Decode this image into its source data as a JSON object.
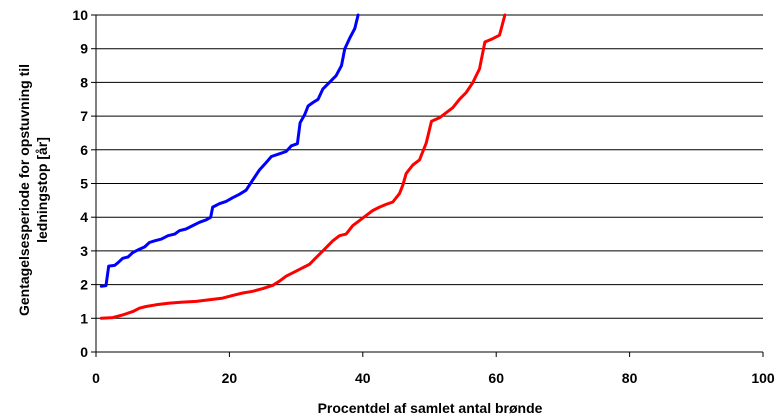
{
  "chart_data": {
    "type": "line",
    "xlabel": "Procentdel af samlet antal brønde",
    "ylabel_lines": [
      "Gentagelsesperiode for opstuvning til",
      "ledningstop [år]"
    ],
    "xlim": [
      0,
      100
    ],
    "ylim": [
      0,
      10
    ],
    "x_ticks": [
      0,
      20,
      40,
      60,
      80,
      100
    ],
    "y_ticks": [
      0,
      1,
      2,
      3,
      4,
      5,
      6,
      7,
      8,
      9,
      10
    ],
    "grid": "horizontal",
    "colors": {
      "series_blue": "#0000ff",
      "series_red": "#ff0000",
      "grid": "#000000",
      "axis": "#000000"
    },
    "series": [
      {
        "color": "#0000ff",
        "points": [
          [
            0.8,
            1.95
          ],
          [
            1.5,
            1.97
          ],
          [
            1.9,
            2.55
          ],
          [
            2.8,
            2.57
          ],
          [
            3.3,
            2.65
          ],
          [
            4.0,
            2.78
          ],
          [
            4.8,
            2.82
          ],
          [
            5.5,
            2.95
          ],
          [
            6.5,
            3.05
          ],
          [
            7.3,
            3.12
          ],
          [
            8.0,
            3.25
          ],
          [
            8.8,
            3.3
          ],
          [
            9.8,
            3.35
          ],
          [
            10.8,
            3.45
          ],
          [
            11.8,
            3.5
          ],
          [
            12.5,
            3.6
          ],
          [
            13.5,
            3.65
          ],
          [
            14.5,
            3.75
          ],
          [
            15.5,
            3.85
          ],
          [
            16.5,
            3.92
          ],
          [
            17.2,
            4.0
          ],
          [
            17.5,
            4.3
          ],
          [
            18.5,
            4.4
          ],
          [
            19.5,
            4.47
          ],
          [
            20.5,
            4.58
          ],
          [
            21.5,
            4.68
          ],
          [
            22.5,
            4.8
          ],
          [
            23.5,
            5.1
          ],
          [
            24.5,
            5.4
          ],
          [
            25.5,
            5.62
          ],
          [
            26.3,
            5.8
          ],
          [
            27.5,
            5.88
          ],
          [
            28.5,
            5.95
          ],
          [
            29.3,
            6.12
          ],
          [
            30.2,
            6.18
          ],
          [
            30.6,
            6.8
          ],
          [
            31.3,
            7.05
          ],
          [
            31.8,
            7.3
          ],
          [
            32.5,
            7.4
          ],
          [
            33.3,
            7.5
          ],
          [
            34.0,
            7.8
          ],
          [
            35.0,
            8.0
          ],
          [
            36.0,
            8.2
          ],
          [
            36.8,
            8.5
          ],
          [
            37.3,
            9.0
          ],
          [
            38.0,
            9.3
          ],
          [
            38.8,
            9.6
          ],
          [
            39.3,
            10.0
          ]
        ]
      },
      {
        "color": "#ff0000",
        "points": [
          [
            0.8,
            1.0
          ],
          [
            2.5,
            1.02
          ],
          [
            4.0,
            1.1
          ],
          [
            5.5,
            1.2
          ],
          [
            6.5,
            1.3
          ],
          [
            7.5,
            1.35
          ],
          [
            9.0,
            1.4
          ],
          [
            11.0,
            1.45
          ],
          [
            13.0,
            1.48
          ],
          [
            15.0,
            1.5
          ],
          [
            17.0,
            1.55
          ],
          [
            19.0,
            1.6
          ],
          [
            20.5,
            1.68
          ],
          [
            22.0,
            1.75
          ],
          [
            23.5,
            1.8
          ],
          [
            25.0,
            1.88
          ],
          [
            26.5,
            1.98
          ],
          [
            27.5,
            2.1
          ],
          [
            28.5,
            2.25
          ],
          [
            29.5,
            2.35
          ],
          [
            30.5,
            2.45
          ],
          [
            32.0,
            2.6
          ],
          [
            33.0,
            2.8
          ],
          [
            34.0,
            3.0
          ],
          [
            35.5,
            3.3
          ],
          [
            36.5,
            3.45
          ],
          [
            37.5,
            3.5
          ],
          [
            38.5,
            3.75
          ],
          [
            39.5,
            3.9
          ],
          [
            40.5,
            4.05
          ],
          [
            41.5,
            4.2
          ],
          [
            42.5,
            4.3
          ],
          [
            43.5,
            4.38
          ],
          [
            44.5,
            4.45
          ],
          [
            45.5,
            4.7
          ],
          [
            46.0,
            4.95
          ],
          [
            46.5,
            5.3
          ],
          [
            47.5,
            5.55
          ],
          [
            48.5,
            5.7
          ],
          [
            49.5,
            6.2
          ],
          [
            50.3,
            6.85
          ],
          [
            51.5,
            6.95
          ],
          [
            52.5,
            7.1
          ],
          [
            53.5,
            7.25
          ],
          [
            54.5,
            7.5
          ],
          [
            55.5,
            7.7
          ],
          [
            56.5,
            8.0
          ],
          [
            57.5,
            8.4
          ],
          [
            58.3,
            9.2
          ],
          [
            59.5,
            9.3
          ],
          [
            60.5,
            9.4
          ],
          [
            61.3,
            10.0
          ]
        ]
      }
    ]
  }
}
